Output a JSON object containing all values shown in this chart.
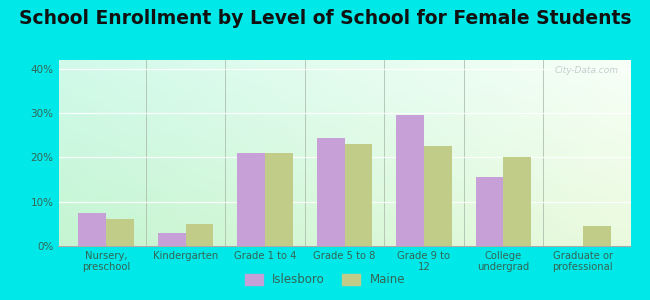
{
  "title": "School Enrollment by Level of School for Female Students",
  "categories": [
    "Nursery,\npreschool",
    "Kindergarten",
    "Grade 1 to 4",
    "Grade 5 to 8",
    "Grade 9 to\n12",
    "College\nundergrad",
    "Graduate or\nprofessional"
  ],
  "islesboro": [
    7.5,
    3.0,
    21.0,
    24.5,
    29.5,
    15.5,
    0.0
  ],
  "maine": [
    6.0,
    5.0,
    21.0,
    23.0,
    22.5,
    20.0,
    4.5
  ],
  "islesboro_color": "#c8a0d8",
  "maine_color": "#c0cc88",
  "background_color": "#00e8e8",
  "ylim": [
    0,
    42
  ],
  "yticks": [
    0,
    10,
    20,
    30,
    40
  ],
  "ytick_labels": [
    "0%",
    "10%",
    "20%",
    "30%",
    "40%"
  ],
  "bar_width": 0.35,
  "title_fontsize": 13.5,
  "legend_labels": [
    "Islesboro",
    "Maine"
  ],
  "label_color": "#336655",
  "title_color": "#111111"
}
